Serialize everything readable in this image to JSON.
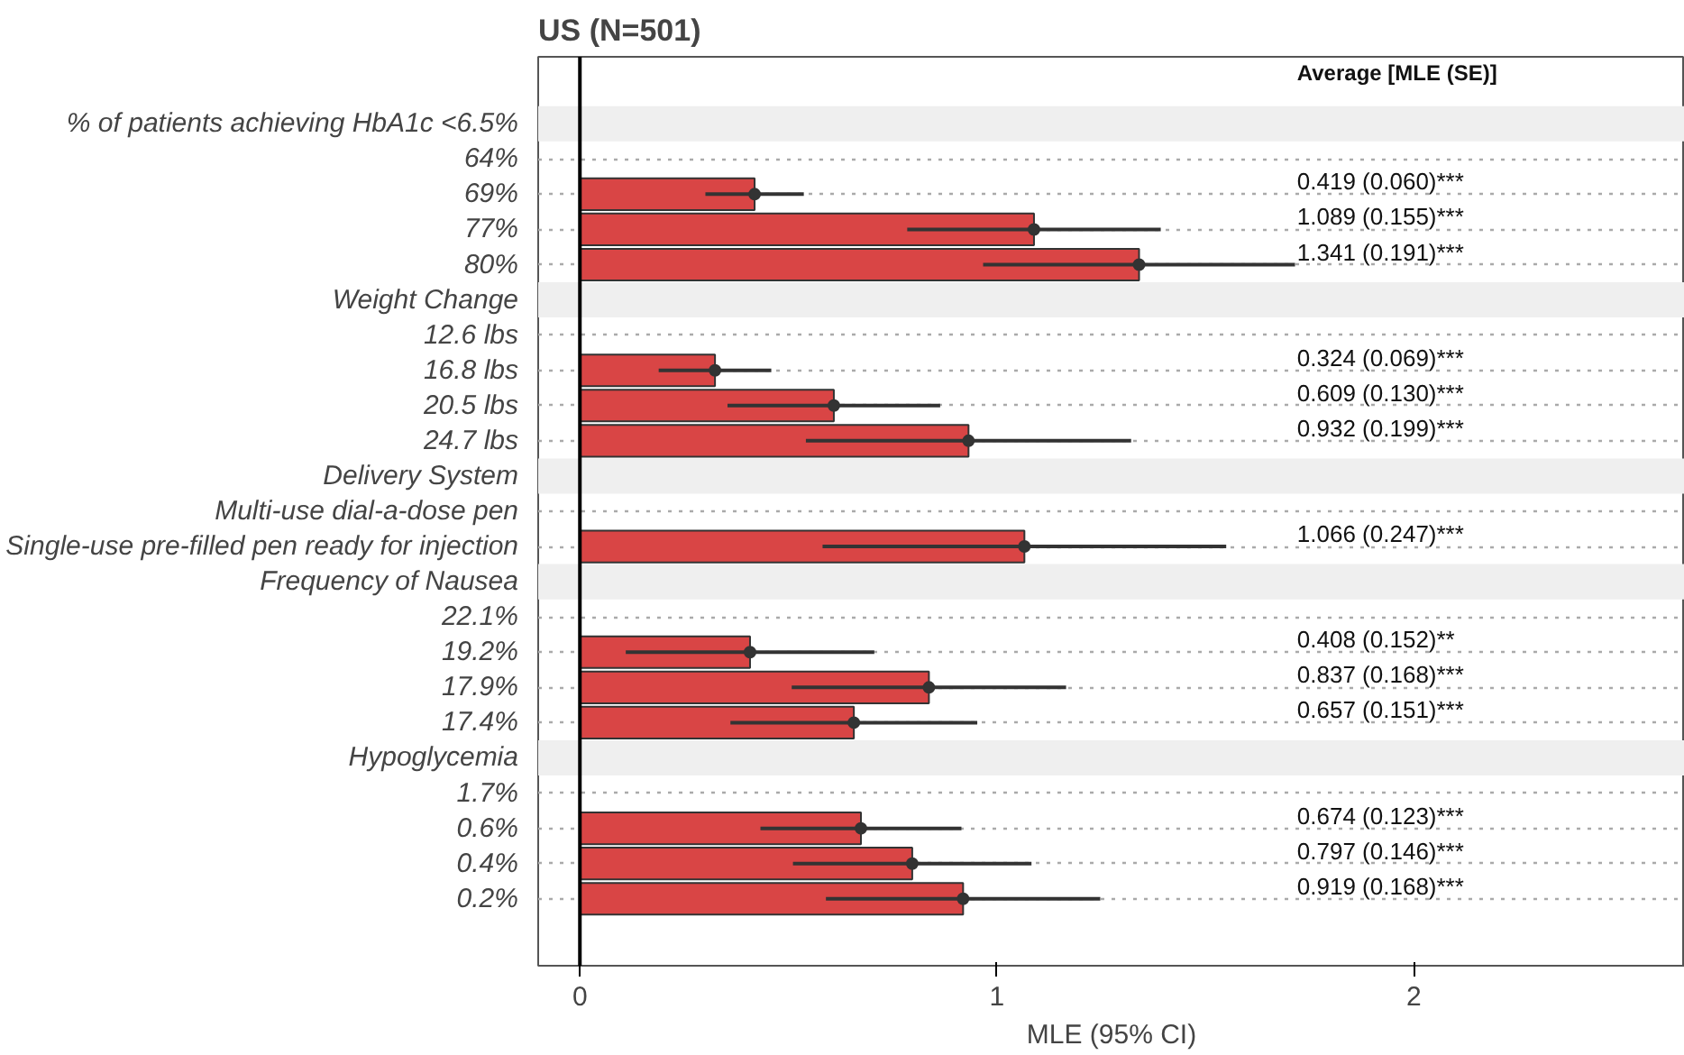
{
  "chart_data": {
    "type": "bar",
    "orientation": "horizontal",
    "title": "US (N=501)",
    "xlabel": "MLE (95% CI)",
    "categories": [
      "% of patients achieving HbA1c <6.5%",
      "64%",
      "69%",
      "77%",
      "80%",
      "Weight Change",
      "12.6 lbs",
      "16.8 lbs",
      "20.5 lbs",
      "24.7 lbs",
      "Delivery System",
      "Multi-use dial-a-dose pen",
      "Single-use pre-filled pen ready for injection",
      "Frequency of Nausea",
      "22.1%",
      "19.2%",
      "17.9%",
      "17.4%",
      "Hypoglycemia",
      "1.7%",
      "0.6%",
      "0.4%",
      "0.2%"
    ],
    "series": [
      {
        "color": "#d94545",
        "values": [
          null,
          null,
          0.419,
          1.089,
          1.341,
          null,
          null,
          0.324,
          0.609,
          0.932,
          null,
          null,
          1.066,
          null,
          null,
          0.408,
          0.837,
          0.657,
          null,
          null,
          0.674,
          0.797,
          0.919
        ],
        "errors": [
          null,
          null,
          0.118,
          0.304,
          0.374,
          null,
          null,
          0.135,
          0.255,
          0.39,
          null,
          null,
          0.484,
          null,
          null,
          0.298,
          0.329,
          0.296,
          null,
          null,
          0.241,
          0.286,
          0.329
        ],
        "value_labels": [
          null,
          null,
          "0.419 (0.060)***",
          "1.089 (0.155)***",
          "1.341 (0.191)***",
          null,
          null,
          "0.324 (0.069)***",
          "0.609 (0.130)***",
          "0.932 (0.199)***",
          null,
          null,
          "1.066 (0.247)***",
          null,
          null,
          "0.408 (0.152)**",
          "0.837 (0.168)***",
          "0.657 (0.151)***",
          null,
          null,
          "0.674 (0.123)***",
          "0.797 (0.146)***",
          "0.919 (0.168)***"
        ]
      },
      {
        "type": "scatter",
        "color": "#333333",
        "marker": "circle",
        "values": [
          null,
          null,
          0.419,
          1.089,
          1.341,
          null,
          null,
          0.324,
          0.609,
          0.932,
          null,
          null,
          1.066,
          null,
          null,
          0.408,
          0.837,
          0.657,
          null,
          null,
          0.674,
          0.797,
          0.919
        ]
      }
    ],
    "xlim": [
      -0.1,
      2.65
    ],
    "xticks": [
      0,
      1,
      2
    ],
    "grid": "y",
    "annotations": [
      "Average [MLE (SE)]"
    ],
    "ref_lines": [
      {
        "axis": "x",
        "value": 0,
        "color": "#000000"
      }
    ],
    "bands": [
      {
        "axis": "y",
        "from": "% of patients achieving HbA1c <6.5%",
        "to": "% of patients achieving HbA1c <6.5%",
        "color": "#efefef"
      },
      {
        "axis": "y",
        "from": "Weight Change",
        "to": "Weight Change",
        "color": "#efefef"
      },
      {
        "axis": "y",
        "from": "Delivery System",
        "to": "Delivery System",
        "color": "#efefef"
      },
      {
        "axis": "y",
        "from": "Frequency of Nausea",
        "to": "Frequency of Nausea",
        "color": "#efefef"
      },
      {
        "axis": "y",
        "from": "Hypoglycemia",
        "to": "Hypoglycemia",
        "color": "#efefef"
      }
    ]
  }
}
